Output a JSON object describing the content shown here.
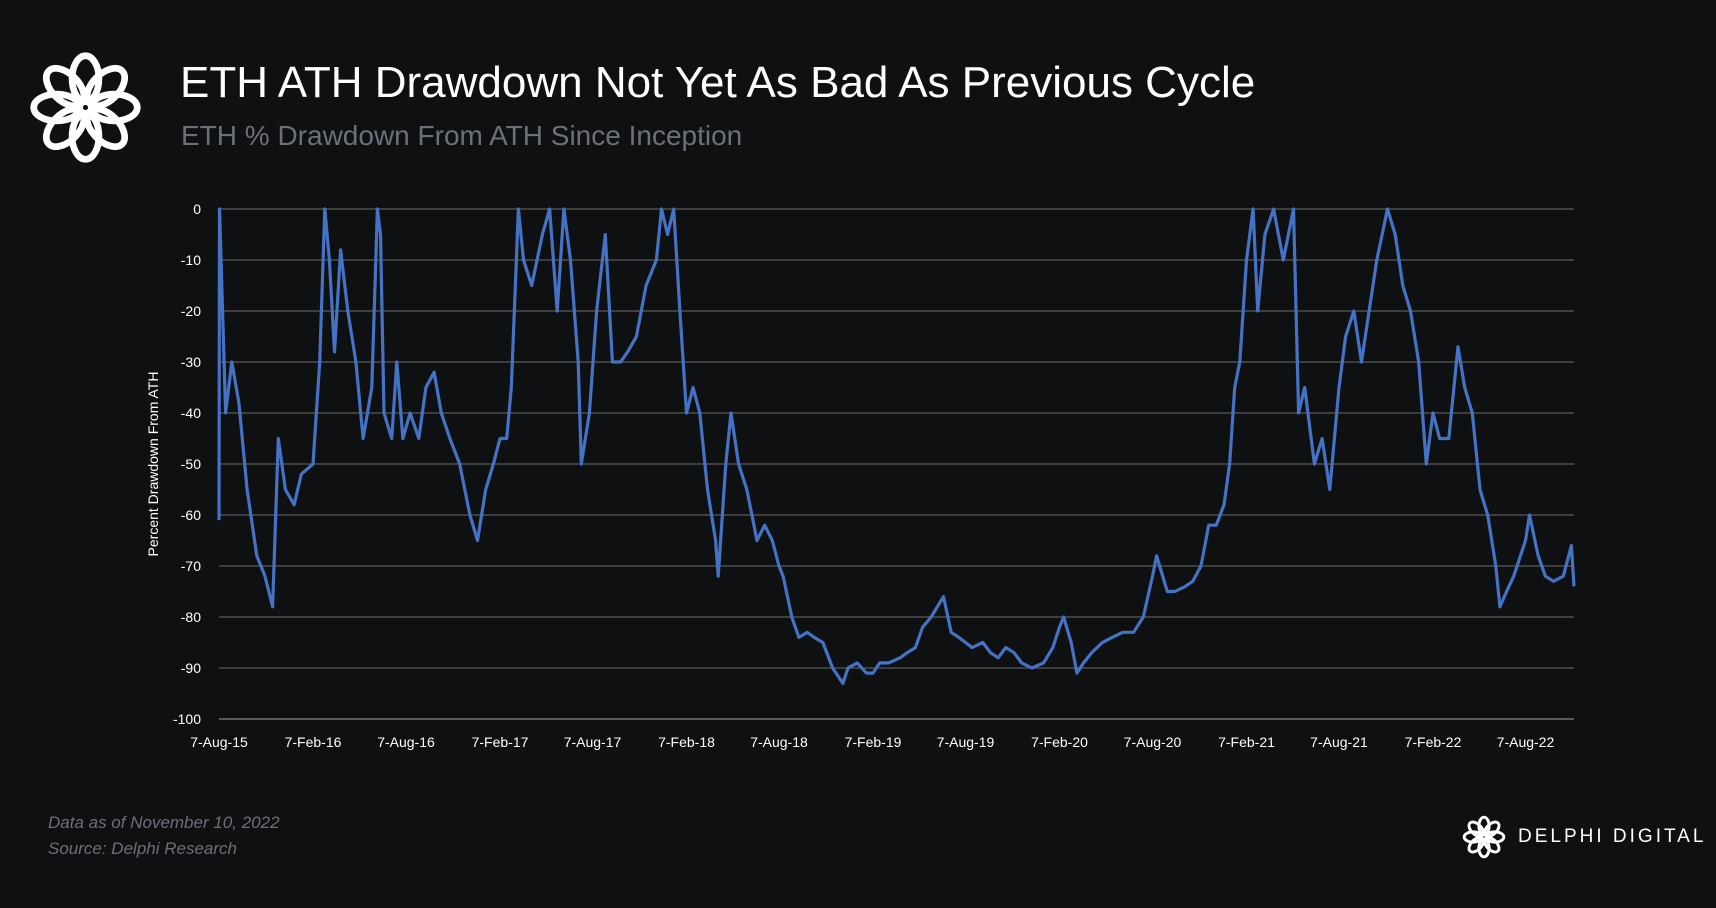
{
  "header": {
    "title": "ETH ATH Drawdown Not Yet As Bad As Previous Cycle",
    "subtitle": "ETH % Drawdown From ATH Since Inception",
    "logo_icon": "delphi-knot-logo"
  },
  "footer": {
    "data_note": "Data as of November 10, 2022",
    "source": "Source: Delphi Research",
    "brand": "DELPHI DIGITAL"
  },
  "colors": {
    "background": "#0f1012",
    "line": "#4472c4",
    "grid": "#5a5a5a",
    "muted_text": "#6b7079"
  },
  "chart_data": {
    "type": "line",
    "title": "ETH ATH Drawdown Not Yet As Bad As Previous Cycle",
    "subtitle": "ETH % Drawdown From ATH Since Inception",
    "xlabel": "",
    "ylabel": "Percent Drawdown From ATH",
    "ylim": [
      -100,
      0
    ],
    "yticks": [
      0,
      -10,
      -20,
      -30,
      -40,
      -50,
      -60,
      -70,
      -80,
      -90,
      -100
    ],
    "xlim": [
      "2015-08-07",
      "2022-11-10"
    ],
    "xticks": [
      {
        "date": "2015-08-07",
        "label": "7-Aug-15"
      },
      {
        "date": "2016-02-07",
        "label": "7-Feb-16"
      },
      {
        "date": "2016-08-07",
        "label": "7-Aug-16"
      },
      {
        "date": "2017-02-07",
        "label": "7-Feb-17"
      },
      {
        "date": "2017-08-07",
        "label": "7-Aug-17"
      },
      {
        "date": "2018-02-07",
        "label": "7-Feb-18"
      },
      {
        "date": "2018-08-07",
        "label": "7-Aug-18"
      },
      {
        "date": "2019-02-07",
        "label": "7-Feb-19"
      },
      {
        "date": "2019-08-07",
        "label": "7-Aug-19"
      },
      {
        "date": "2020-02-07",
        "label": "7-Feb-20"
      },
      {
        "date": "2020-08-07",
        "label": "7-Aug-20"
      },
      {
        "date": "2021-02-07",
        "label": "7-Feb-21"
      },
      {
        "date": "2021-08-07",
        "label": "7-Aug-21"
      },
      {
        "date": "2022-02-07",
        "label": "7-Feb-22"
      },
      {
        "date": "2022-08-07",
        "label": "7-Aug-22"
      }
    ],
    "grid": true,
    "legend": "none",
    "series": [
      {
        "color": "#4472c4",
        "points": [
          [
            "2015-08-07",
            -61
          ],
          [
            "2015-08-08",
            0
          ],
          [
            "2015-08-20",
            -40
          ],
          [
            "2015-09-01",
            -30
          ],
          [
            "2015-09-15",
            -38
          ],
          [
            "2015-10-01",
            -55
          ],
          [
            "2015-10-20",
            -68
          ],
          [
            "2015-11-05",
            -72
          ],
          [
            "2015-11-20",
            -78
          ],
          [
            "2015-12-01",
            -45
          ],
          [
            "2015-12-15",
            -55
          ],
          [
            "2016-01-01",
            -58
          ],
          [
            "2016-01-15",
            -52
          ],
          [
            "2016-02-07",
            -50
          ],
          [
            "2016-02-20",
            -30
          ],
          [
            "2016-03-01",
            0
          ],
          [
            "2016-03-10",
            -10
          ],
          [
            "2016-03-20",
            -28
          ],
          [
            "2016-04-01",
            -8
          ],
          [
            "2016-04-15",
            -20
          ],
          [
            "2016-05-01",
            -30
          ],
          [
            "2016-05-15",
            -45
          ],
          [
            "2016-06-01",
            -35
          ],
          [
            "2016-06-12",
            0
          ],
          [
            "2016-06-18",
            -5
          ],
          [
            "2016-06-25",
            -40
          ],
          [
            "2016-07-10",
            -45
          ],
          [
            "2016-07-20",
            -30
          ],
          [
            "2016-08-01",
            -45
          ],
          [
            "2016-08-15",
            -40
          ],
          [
            "2016-09-01",
            -45
          ],
          [
            "2016-09-15",
            -35
          ],
          [
            "2016-10-01",
            -32
          ],
          [
            "2016-10-15",
            -40
          ],
          [
            "2016-11-01",
            -45
          ],
          [
            "2016-11-20",
            -50
          ],
          [
            "2016-12-10",
            -60
          ],
          [
            "2016-12-25",
            -65
          ],
          [
            "2017-01-10",
            -55
          ],
          [
            "2017-01-25",
            -50
          ],
          [
            "2017-02-07",
            -45
          ],
          [
            "2017-02-20",
            -45
          ],
          [
            "2017-03-01",
            -35
          ],
          [
            "2017-03-15",
            0
          ],
          [
            "2017-03-25",
            -10
          ],
          [
            "2017-04-10",
            -15
          ],
          [
            "2017-05-01",
            -5
          ],
          [
            "2017-05-15",
            0
          ],
          [
            "2017-05-30",
            -20
          ],
          [
            "2017-06-12",
            0
          ],
          [
            "2017-06-25",
            -10
          ],
          [
            "2017-07-10",
            -30
          ],
          [
            "2017-07-16",
            -50
          ],
          [
            "2017-08-01",
            -40
          ],
          [
            "2017-08-15",
            -20
          ],
          [
            "2017-09-01",
            -5
          ],
          [
            "2017-09-15",
            -30
          ],
          [
            "2017-10-01",
            -30
          ],
          [
            "2017-10-15",
            -28
          ],
          [
            "2017-11-01",
            -25
          ],
          [
            "2017-11-20",
            -15
          ],
          [
            "2017-12-10",
            -10
          ],
          [
            "2017-12-20",
            0
          ],
          [
            "2018-01-01",
            -5
          ],
          [
            "2018-01-13",
            0
          ],
          [
            "2018-01-25",
            -20
          ],
          [
            "2018-02-07",
            -40
          ],
          [
            "2018-02-20",
            -35
          ],
          [
            "2018-03-05",
            -40
          ],
          [
            "2018-03-20",
            -55
          ],
          [
            "2018-04-05",
            -65
          ],
          [
            "2018-04-10",
            -72
          ],
          [
            "2018-04-25",
            -50
          ],
          [
            "2018-05-05",
            -40
          ],
          [
            "2018-05-20",
            -50
          ],
          [
            "2018-06-05",
            -55
          ],
          [
            "2018-06-25",
            -65
          ],
          [
            "2018-07-10",
            -62
          ],
          [
            "2018-07-25",
            -65
          ],
          [
            "2018-08-07",
            -70
          ],
          [
            "2018-08-15",
            -72
          ],
          [
            "2018-09-01",
            -80
          ],
          [
            "2018-09-15",
            -84
          ],
          [
            "2018-10-01",
            -83
          ],
          [
            "2018-10-15",
            -84
          ],
          [
            "2018-11-01",
            -85
          ],
          [
            "2018-11-20",
            -90
          ],
          [
            "2018-12-10",
            -93
          ],
          [
            "2018-12-20",
            -90
          ],
          [
            "2019-01-07",
            -89
          ],
          [
            "2019-01-25",
            -91
          ],
          [
            "2019-02-07",
            -91
          ],
          [
            "2019-02-20",
            -89
          ],
          [
            "2019-03-10",
            -89
          ],
          [
            "2019-04-01",
            -88
          ],
          [
            "2019-04-15",
            -87
          ],
          [
            "2019-05-01",
            -86
          ],
          [
            "2019-05-15",
            -82
          ],
          [
            "2019-06-01",
            -80
          ],
          [
            "2019-06-25",
            -76
          ],
          [
            "2019-07-10",
            -83
          ],
          [
            "2019-07-25",
            -84
          ],
          [
            "2019-08-07",
            -85
          ],
          [
            "2019-08-20",
            -86
          ],
          [
            "2019-09-10",
            -85
          ],
          [
            "2019-09-25",
            -87
          ],
          [
            "2019-10-10",
            -88
          ],
          [
            "2019-10-25",
            -86
          ],
          [
            "2019-11-10",
            -87
          ],
          [
            "2019-11-25",
            -89
          ],
          [
            "2019-12-15",
            -90
          ],
          [
            "2020-01-07",
            -89
          ],
          [
            "2020-01-25",
            -86
          ],
          [
            "2020-02-07",
            -82
          ],
          [
            "2020-02-15",
            -80
          ],
          [
            "2020-03-01",
            -85
          ],
          [
            "2020-03-12",
            -91
          ],
          [
            "2020-03-25",
            -89
          ],
          [
            "2020-04-10",
            -87
          ],
          [
            "2020-05-01",
            -85
          ],
          [
            "2020-05-20",
            -84
          ],
          [
            "2020-06-10",
            -83
          ],
          [
            "2020-07-01",
            -83
          ],
          [
            "2020-07-20",
            -80
          ],
          [
            "2020-08-07",
            -72
          ],
          [
            "2020-08-15",
            -68
          ],
          [
            "2020-09-05",
            -75
          ],
          [
            "2020-09-20",
            -75
          ],
          [
            "2020-10-10",
            -74
          ],
          [
            "2020-10-25",
            -73
          ],
          [
            "2020-11-10",
            -70
          ],
          [
            "2020-11-25",
            -62
          ],
          [
            "2020-12-10",
            -62
          ],
          [
            "2020-12-25",
            -58
          ],
          [
            "2021-01-05",
            -50
          ],
          [
            "2021-01-15",
            -35
          ],
          [
            "2021-01-25",
            -30
          ],
          [
            "2021-02-07",
            -10
          ],
          [
            "2021-02-20",
            0
          ],
          [
            "2021-03-01",
            -20
          ],
          [
            "2021-03-15",
            -5
          ],
          [
            "2021-04-01",
            0
          ],
          [
            "2021-04-20",
            -10
          ],
          [
            "2021-05-10",
            0
          ],
          [
            "2021-05-20",
            -40
          ],
          [
            "2021-06-01",
            -35
          ],
          [
            "2021-06-20",
            -50
          ],
          [
            "2021-07-05",
            -45
          ],
          [
            "2021-07-20",
            -55
          ],
          [
            "2021-08-07",
            -35
          ],
          [
            "2021-08-20",
            -25
          ],
          [
            "2021-09-05",
            -20
          ],
          [
            "2021-09-20",
            -30
          ],
          [
            "2021-10-05",
            -20
          ],
          [
            "2021-10-20",
            -10
          ],
          [
            "2021-11-10",
            0
          ],
          [
            "2021-11-25",
            -5
          ],
          [
            "2021-12-10",
            -15
          ],
          [
            "2021-12-25",
            -20
          ],
          [
            "2022-01-10",
            -30
          ],
          [
            "2022-01-25",
            -50
          ],
          [
            "2022-02-07",
            -40
          ],
          [
            "2022-02-20",
            -45
          ],
          [
            "2022-03-10",
            -45
          ],
          [
            "2022-03-28",
            -27
          ],
          [
            "2022-04-10",
            -35
          ],
          [
            "2022-04-25",
            -40
          ],
          [
            "2022-05-10",
            -55
          ],
          [
            "2022-05-25",
            -60
          ],
          [
            "2022-06-10",
            -70
          ],
          [
            "2022-06-18",
            -78
          ],
          [
            "2022-07-01",
            -75
          ],
          [
            "2022-07-15",
            -72
          ],
          [
            "2022-08-07",
            -65
          ],
          [
            "2022-08-15",
            -60
          ],
          [
            "2022-09-01",
            -68
          ],
          [
            "2022-09-15",
            -72
          ],
          [
            "2022-10-01",
            -73
          ],
          [
            "2022-10-20",
            -72
          ],
          [
            "2022-11-05",
            -66
          ],
          [
            "2022-11-10",
            -74
          ]
        ]
      }
    ]
  }
}
